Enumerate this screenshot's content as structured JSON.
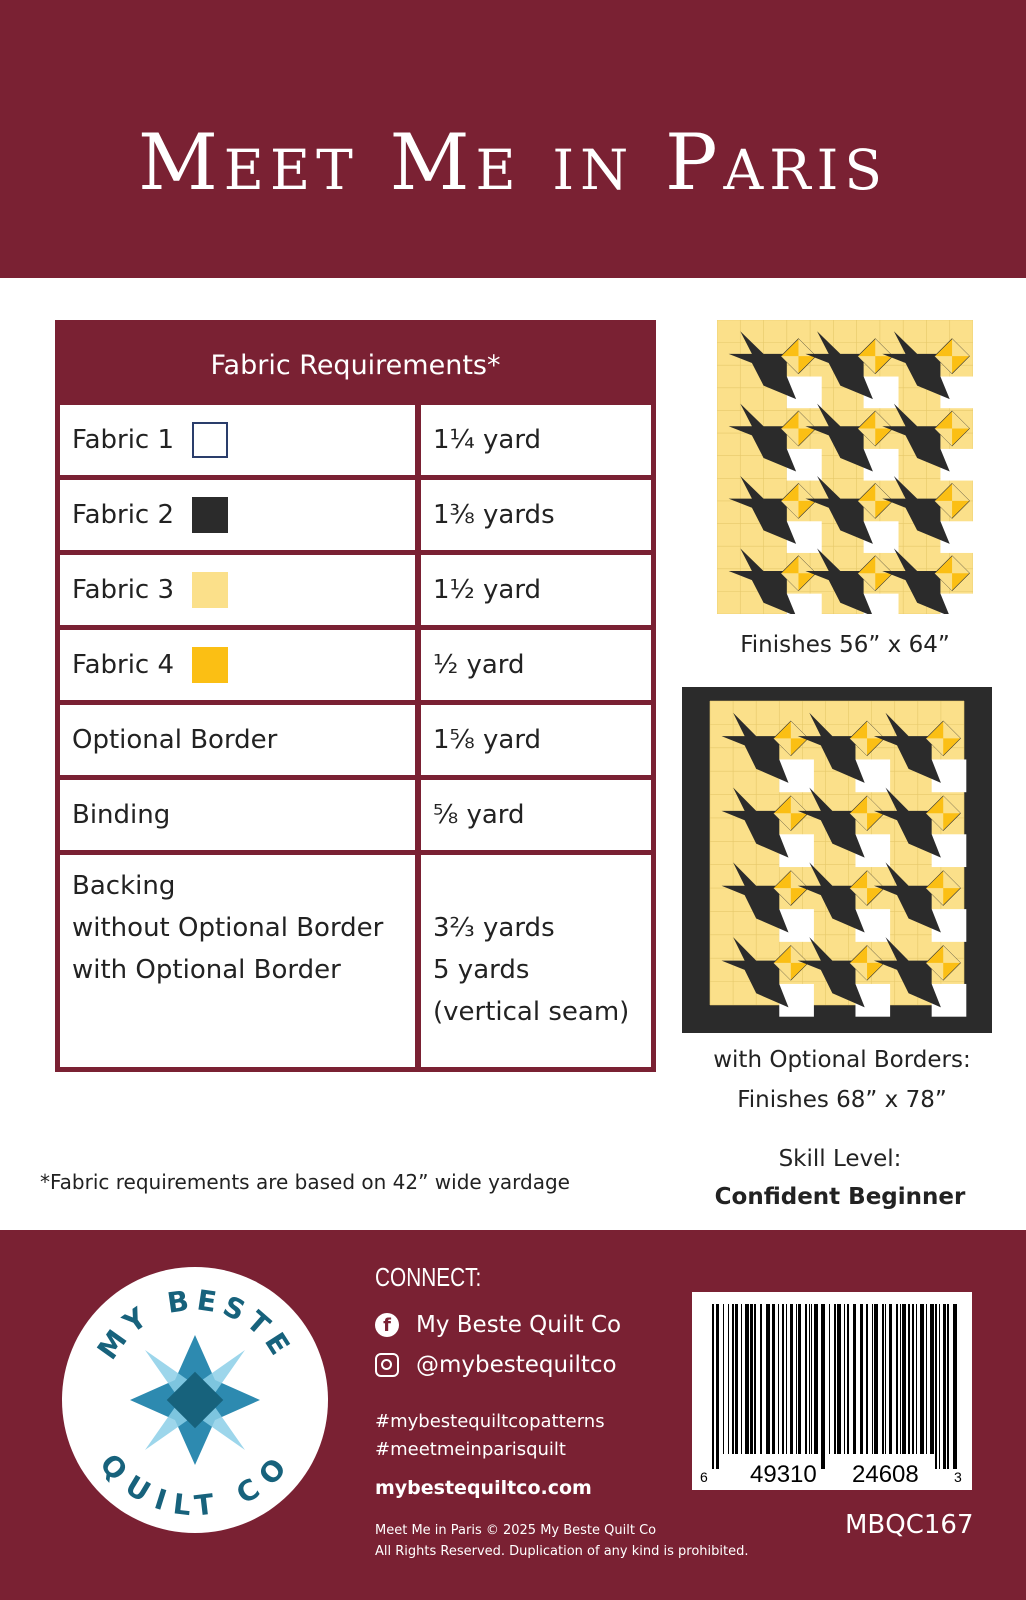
{
  "title": "Meet Me in Paris",
  "table": {
    "header": "Fabric Requirements*",
    "rows": [
      {
        "label": "Fabric 1",
        "swatch": "#ffffff",
        "amount": "1¼ yard"
      },
      {
        "label": "Fabric 2",
        "swatch": "#2b2b2b",
        "amount": "1⅜ yards"
      },
      {
        "label": "Fabric 3",
        "swatch": "#fbe08a",
        "amount": "1½ yard"
      },
      {
        "label": "Fabric 4",
        "swatch": "#fbbf14",
        "amount": "½ yard"
      },
      {
        "label": "Optional Border",
        "amount": "1⅝ yard"
      },
      {
        "label": "Binding",
        "amount": "⅝ yard"
      }
    ],
    "backing": {
      "lines": [
        "Backing",
        "without Optional Border",
        "with Optional Border"
      ],
      "amounts": [
        "3⅔ yards",
        "5 yards",
        "(vertical seam)"
      ]
    }
  },
  "footnote": "*Fabric requirements are based on 42” wide yardage",
  "quilt1_caption": "Finishes 56” x 64”",
  "quilt2_caption": [
    "with Optional Borders:",
    "Finishes 68” x 78”"
  ],
  "skill": {
    "label": "Skill Level:",
    "value": "Confident Beginner"
  },
  "footer": {
    "connect": "CONNECT:",
    "facebook": "My Beste Quilt Co",
    "instagram": "@mybestequiltco",
    "hashtags": [
      "#mybestequiltcopatterns",
      "#meetmeinparisquilt"
    ],
    "website": "mybestequiltco.com",
    "copyright": [
      "Meet Me in Paris © 2025 My Beste Quilt Co",
      "All Rights Reserved. Duplication of any kind is prohibited."
    ],
    "logo_text": "MY BESTE QUILT CO",
    "barcode_digits": [
      "6",
      "49310",
      "24608",
      "3"
    ],
    "sku": "MBQC167"
  },
  "colors": {
    "maroon": "#7a2133",
    "black": "#2b2b2b",
    "light_yellow": "#fbe08a",
    "yellow": "#fbbf14"
  }
}
